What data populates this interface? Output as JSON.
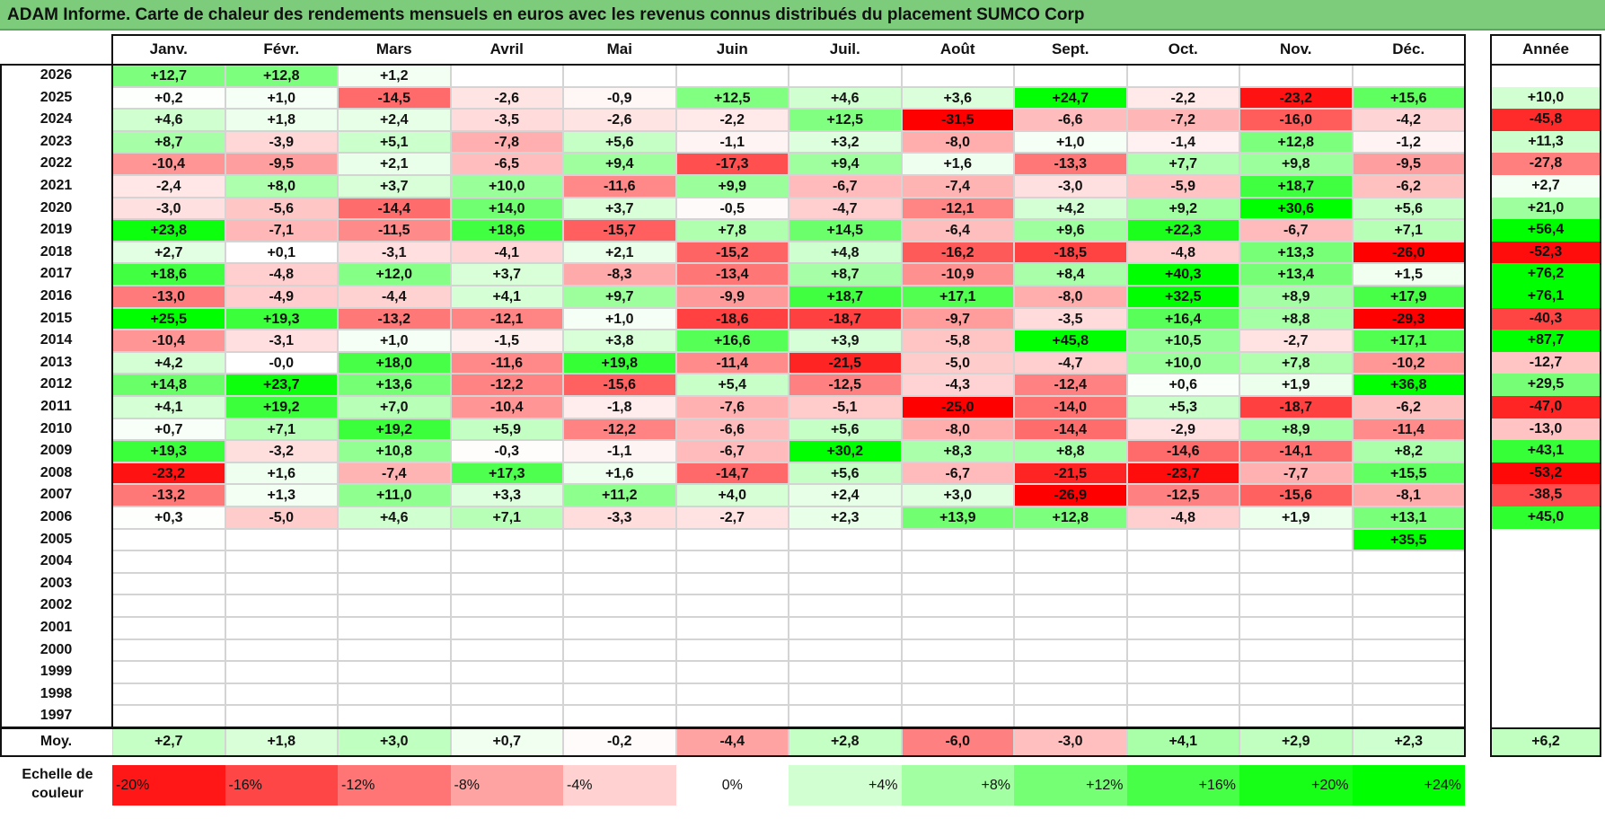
{
  "title": "ADAM Informe. Carte de chaleur des rendements mensuels en euros avec les revenus connus distribués du placement SUMCO Corp",
  "chart_data": {
    "type": "heatmap",
    "title": "ADAM Informe. Carte de chaleur des rendements mensuels en euros avec les revenus connus distribués du placement SUMCO Corp",
    "months": [
      "Janv.",
      "Févr.",
      "Mars",
      "Avril",
      "Mai",
      "Juin",
      "Juil.",
      "Août",
      "Sept.",
      "Oct.",
      "Nov.",
      "Déc."
    ],
    "year_header": "Année",
    "rows": [
      {
        "year": "2026",
        "values": [
          "+12,7",
          "+12,8",
          "+1,2",
          "",
          "",
          "",
          "",
          "",
          "",
          "",
          "",
          ""
        ],
        "annual": ""
      },
      {
        "year": "2025",
        "values": [
          "+0,2",
          "+1,0",
          "-14,5",
          "-2,6",
          "-0,9",
          "+12,5",
          "+4,6",
          "+3,6",
          "+24,7",
          "-2,2",
          "-23,2",
          "+15,6"
        ],
        "annual": "+10,0"
      },
      {
        "year": "2024",
        "values": [
          "+4,6",
          "+1,8",
          "+2,4",
          "-3,5",
          "-2,6",
          "-2,2",
          "+12,5",
          "-31,5",
          "-6,6",
          "-7,2",
          "-16,0",
          "-4,2"
        ],
        "annual": "-45,8"
      },
      {
        "year": "2023",
        "values": [
          "+8,7",
          "-3,9",
          "+5,1",
          "-7,8",
          "+5,6",
          "-1,1",
          "+3,2",
          "-8,0",
          "+1,0",
          "-1,4",
          "+12,8",
          "-1,2"
        ],
        "annual": "+11,3"
      },
      {
        "year": "2022",
        "values": [
          "-10,4",
          "-9,5",
          "+2,1",
          "-6,5",
          "+9,4",
          "-17,3",
          "+9,4",
          "+1,6",
          "-13,3",
          "+7,7",
          "+9,8",
          "-9,5"
        ],
        "annual": "-27,8"
      },
      {
        "year": "2021",
        "values": [
          "-2,4",
          "+8,0",
          "+3,7",
          "+10,0",
          "-11,6",
          "+9,9",
          "-6,7",
          "-7,4",
          "-3,0",
          "-5,9",
          "+18,7",
          "-6,2"
        ],
        "annual": "+2,7"
      },
      {
        "year": "2020",
        "values": [
          "-3,0",
          "-5,6",
          "-14,4",
          "+14,0",
          "+3,7",
          "-0,5",
          "-4,7",
          "-12,1",
          "+4,2",
          "+9,2",
          "+30,6",
          "+5,6"
        ],
        "annual": "+21,0"
      },
      {
        "year": "2019",
        "values": [
          "+23,8",
          "-7,1",
          "-11,5",
          "+18,6",
          "-15,7",
          "+7,8",
          "+14,5",
          "-6,4",
          "+9,6",
          "+22,3",
          "-6,7",
          "+7,1"
        ],
        "annual": "+56,4"
      },
      {
        "year": "2018",
        "values": [
          "+2,7",
          "+0,1",
          "-3,1",
          "-4,1",
          "+2,1",
          "-15,2",
          "+4,8",
          "-16,2",
          "-18,5",
          "-4,8",
          "+13,3",
          "-26,0"
        ],
        "annual": "-52,3"
      },
      {
        "year": "2017",
        "values": [
          "+18,6",
          "-4,8",
          "+12,0",
          "+3,7",
          "-8,3",
          "-13,4",
          "+8,7",
          "-10,9",
          "+8,4",
          "+40,3",
          "+13,4",
          "+1,5"
        ],
        "annual": "+76,2"
      },
      {
        "year": "2016",
        "values": [
          "-13,0",
          "-4,9",
          "-4,4",
          "+4,1",
          "+9,7",
          "-9,9",
          "+18,7",
          "+17,1",
          "-8,0",
          "+32,5",
          "+8,9",
          "+17,9"
        ],
        "annual": "+76,1"
      },
      {
        "year": "2015",
        "values": [
          "+25,5",
          "+19,3",
          "-13,2",
          "-12,1",
          "+1,0",
          "-18,6",
          "-18,7",
          "-9,7",
          "-3,5",
          "+16,4",
          "+8,8",
          "-29,3"
        ],
        "annual": "-40,3"
      },
      {
        "year": "2014",
        "values": [
          "-10,4",
          "-3,1",
          "+1,0",
          "-1,5",
          "+3,8",
          "+16,6",
          "+3,9",
          "-5,8",
          "+45,8",
          "+10,5",
          "-2,7",
          "+17,1"
        ],
        "annual": "+87,7"
      },
      {
        "year": "2013",
        "values": [
          "+4,2",
          "-0,0",
          "+18,0",
          "-11,6",
          "+19,8",
          "-11,4",
          "-21,5",
          "-5,0",
          "-4,7",
          "+10,0",
          "+7,8",
          "-10,2"
        ],
        "annual": "-12,7"
      },
      {
        "year": "2012",
        "values": [
          "+14,8",
          "+23,7",
          "+13,6",
          "-12,2",
          "-15,6",
          "+5,4",
          "-12,5",
          "-4,3",
          "-12,4",
          "+0,6",
          "+1,9",
          "+36,8"
        ],
        "annual": "+29,5"
      },
      {
        "year": "2011",
        "values": [
          "+4,1",
          "+19,2",
          "+7,0",
          "-10,4",
          "-1,8",
          "-7,6",
          "-5,1",
          "-25,0",
          "-14,0",
          "+5,3",
          "-18,7",
          "-6,2"
        ],
        "annual": "-47,0"
      },
      {
        "year": "2010",
        "values": [
          "+0,7",
          "+7,1",
          "+19,2",
          "+5,9",
          "-12,2",
          "-6,6",
          "+5,6",
          "-8,0",
          "-14,4",
          "-2,9",
          "+8,9",
          "-11,4"
        ],
        "annual": "-13,0"
      },
      {
        "year": "2009",
        "values": [
          "+19,3",
          "-3,2",
          "+10,8",
          "-0,3",
          "-1,1",
          "-6,7",
          "+30,2",
          "+8,3",
          "+8,8",
          "-14,6",
          "-14,1",
          "+8,2"
        ],
        "annual": "+43,1"
      },
      {
        "year": "2008",
        "values": [
          "-23,2",
          "+1,6",
          "-7,4",
          "+17,3",
          "+1,6",
          "-14,7",
          "+5,6",
          "-6,7",
          "-21,5",
          "-23,7",
          "-7,7",
          "+15,5"
        ],
        "annual": "-53,2"
      },
      {
        "year": "2007",
        "values": [
          "-13,2",
          "+1,3",
          "+11,0",
          "+3,3",
          "+11,2",
          "+4,0",
          "+2,4",
          "+3,0",
          "-26,9",
          "-12,5",
          "-15,6",
          "-8,1"
        ],
        "annual": "-38,5"
      },
      {
        "year": "2006",
        "values": [
          "+0,3",
          "-5,0",
          "+4,6",
          "+7,1",
          "-3,3",
          "-2,7",
          "+2,3",
          "+13,9",
          "+12,8",
          "-4,8",
          "+1,9",
          "+13,1"
        ],
        "annual": "+45,0"
      },
      {
        "year": "2005",
        "values": [
          "",
          "",
          "",
          "",
          "",
          "",
          "",
          "",
          "",
          "",
          "",
          "+35,5"
        ],
        "annual": ""
      },
      {
        "year": "2004",
        "values": [
          "",
          "",
          "",
          "",
          "",
          "",
          "",
          "",
          "",
          "",
          "",
          ""
        ],
        "annual": ""
      },
      {
        "year": "2003",
        "values": [
          "",
          "",
          "",
          "",
          "",
          "",
          "",
          "",
          "",
          "",
          "",
          ""
        ],
        "annual": ""
      },
      {
        "year": "2002",
        "values": [
          "",
          "",
          "",
          "",
          "",
          "",
          "",
          "",
          "",
          "",
          "",
          ""
        ],
        "annual": ""
      },
      {
        "year": "2001",
        "values": [
          "",
          "",
          "",
          "",
          "",
          "",
          "",
          "",
          "",
          "",
          "",
          ""
        ],
        "annual": ""
      },
      {
        "year": "2000",
        "values": [
          "",
          "",
          "",
          "",
          "",
          "",
          "",
          "",
          "",
          "",
          "",
          ""
        ],
        "annual": ""
      },
      {
        "year": "1999",
        "values": [
          "",
          "",
          "",
          "",
          "",
          "",
          "",
          "",
          "",
          "",
          "",
          ""
        ],
        "annual": ""
      },
      {
        "year": "1998",
        "values": [
          "",
          "",
          "",
          "",
          "",
          "",
          "",
          "",
          "",
          "",
          "",
          ""
        ],
        "annual": ""
      },
      {
        "year": "1997",
        "values": [
          "",
          "",
          "",
          "",
          "",
          "",
          "",
          "",
          "",
          "",
          "",
          ""
        ],
        "annual": ""
      }
    ],
    "average": {
      "label": "Moy.",
      "values": [
        "+2,7",
        "+1,8",
        "+3,0",
        "+0,7",
        "-0,2",
        "-4,4",
        "+2,8",
        "-6,0",
        "-3,0",
        "+4,1",
        "+2,9",
        "+2,3"
      ],
      "annual": "+6,2"
    },
    "scale": {
      "label_line1": "Echelle de",
      "label_line2": "couleur",
      "items": [
        "-20%",
        "-16%",
        "-12%",
        "-8%",
        "-4%",
        "0%",
        "+4%",
        "+8%",
        "+12%",
        "+16%",
        "+20%",
        "+24%"
      ],
      "values": [
        -20,
        -16,
        -12,
        -8,
        -4,
        0,
        4,
        8,
        12,
        16,
        20,
        24
      ]
    },
    "colors": {
      "negative_max": "#ff0000",
      "positive_max": "#00ff00",
      "neutral": "#ffffff",
      "title_bg": "#7ccc7c"
    }
  }
}
